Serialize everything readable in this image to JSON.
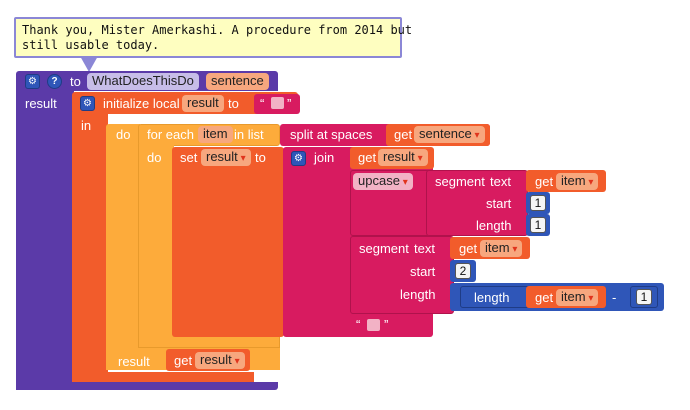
{
  "comment": {
    "line1": "Thank you, Mister Amerkashi. A procedure from 2014 but",
    "line2": "still usable today."
  },
  "procedure": {
    "to_label": "to",
    "name": "WhatDoesThisDo",
    "param": "sentence",
    "result_label": "result"
  },
  "init_local": {
    "label": "initialize local",
    "var_name": "result",
    "to_label": "to",
    "open_quote": "“",
    "close_quote": "”",
    "in_label": "in"
  },
  "outer_do": {
    "do_label": "do"
  },
  "foreach": {
    "label": "for each",
    "var": "item",
    "in_list": "in list",
    "do_label": "do"
  },
  "split": {
    "label": "split at spaces",
    "get_label": "get",
    "get_var": "sentence"
  },
  "set_block": {
    "set_label": "set",
    "var": "result",
    "to_label": "to"
  },
  "join": {
    "label": "join",
    "get_label": "get",
    "get_var": "result"
  },
  "upcase": {
    "label": "upcase"
  },
  "segment1": {
    "label": "segment",
    "text_label": "text",
    "get_label": "get",
    "get_var": "item",
    "start_label": "start",
    "start_value": "1",
    "length_label": "length",
    "length_value": "1"
  },
  "segment2": {
    "label": "segment",
    "text_label": "text",
    "get_label": "get",
    "get_var": "item",
    "start_label": "start",
    "start_value": "2",
    "length_label": "length"
  },
  "length_expr": {
    "label": "length",
    "get_label": "get",
    "get_var": "item",
    "op": "-",
    "value": "1"
  },
  "final_result": {
    "label": "result",
    "get_label": "get",
    "get_var": "result"
  },
  "colors": {
    "procedure": "#5b3aa8",
    "variables": "#f25c2b",
    "control": "#fdab3b",
    "text": "#d81b60",
    "math": "#2f56b8",
    "comment_bg": "#fefec0"
  },
  "icons": [
    "gear-icon",
    "help-icon"
  ]
}
